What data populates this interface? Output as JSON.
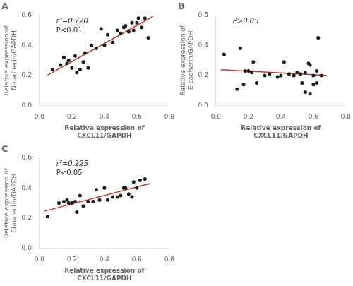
{
  "chart_data": [
    {
      "type": "scatter",
      "title": "A",
      "xlabel": "Relative expression of\nCXCL11/GAPDH",
      "ylabel": "Relative expression of\nN-cadherin/GAPDH",
      "annotations": [
        "r²=0.720",
        "P<0.01"
      ],
      "xlim": [
        0.0,
        0.8
      ],
      "ylim": [
        0.0,
        0.6
      ],
      "xticks": [
        {
          "value": 0.0,
          "label": "0.0"
        },
        0.2,
        0.4,
        0.6,
        0.8
      ],
      "yticks": [
        {
          "value": 0.0,
          "label": "0.0"
        },
        0.2,
        0.4,
        0.6
      ],
      "grid": false,
      "series": [
        {
          "type": "scatter",
          "color": "#1a1a1a",
          "x": [
            0.08,
            0.13,
            0.15,
            0.17,
            0.18,
            0.2,
            0.22,
            0.23,
            0.25,
            0.27,
            0.28,
            0.3,
            0.32,
            0.35,
            0.38,
            0.4,
            0.42,
            0.45,
            0.48,
            0.5,
            0.52,
            0.53,
            0.55,
            0.57,
            0.58,
            0.6,
            0.61,
            0.63,
            0.65,
            0.67
          ],
          "values": [
            0.24,
            0.27,
            0.32,
            0.28,
            0.3,
            0.25,
            0.33,
            0.22,
            0.24,
            0.29,
            0.35,
            0.25,
            0.4,
            0.38,
            0.51,
            0.4,
            0.47,
            0.42,
            0.5,
            0.48,
            0.52,
            0.53,
            0.49,
            0.55,
            0.5,
            0.55,
            0.58,
            0.52,
            0.58,
            0.45
          ]
        },
        {
          "type": "line",
          "color": "#c0392b",
          "x": [
            0.05,
            0.7
          ],
          "values": [
            0.20239,
            0.592155
          ]
        }
      ]
    },
    {
      "type": "scatter",
      "title": "B",
      "xlabel": "Relative expression of\nCXCL11/GAPDH",
      "ylabel": "Relative expression of\nE-cadherin/GAPDH",
      "annotations": [
        "P>0.05"
      ],
      "xlim": [
        0.0,
        0.8
      ],
      "ylim": [
        0.0,
        0.6
      ],
      "xticks": [
        {
          "value": 0.0,
          "label": "0.0"
        },
        0.2,
        0.4,
        0.6,
        0.8
      ],
      "yticks": [
        {
          "value": 0.0,
          "label": "0.0"
        },
        0.2,
        0.4,
        0.6
      ],
      "grid": false,
      "series": [
        {
          "type": "scatter",
          "color": "#1a1a1a",
          "x": [
            0.05,
            0.13,
            0.15,
            0.17,
            0.18,
            0.2,
            0.22,
            0.23,
            0.25,
            0.3,
            0.33,
            0.38,
            0.4,
            0.42,
            0.45,
            0.48,
            0.5,
            0.52,
            0.53,
            0.55,
            0.55,
            0.57,
            0.58,
            0.58,
            0.6,
            0.6,
            0.62,
            0.62,
            0.63,
            0.65
          ],
          "values": [
            0.34,
            0.11,
            0.38,
            0.14,
            0.23,
            0.23,
            0.22,
            0.29,
            0.15,
            0.2,
            0.21,
            0.19,
            0.2,
            0.29,
            0.21,
            0.2,
            0.22,
            0.21,
            0.15,
            0.22,
            0.09,
            0.28,
            0.27,
            0.08,
            0.2,
            0.14,
            0.23,
            0.15,
            0.45,
            0.2
          ]
        },
        {
          "type": "line",
          "color": "#c0392b",
          "x": [
            0.03,
            0.68
          ],
          "values": [
            0.238227,
            0.200669
          ]
        }
      ]
    },
    {
      "type": "scatter",
      "title": "C",
      "xlabel": "Relative expression of\nCXCL11/GAPDH",
      "ylabel": "Relative expression of\nfibronectin/GAPDH",
      "annotations": [
        "r²=0.225",
        "P<0.05"
      ],
      "xlim": [
        0.0,
        0.8
      ],
      "ylim": [
        0.0,
        0.6
      ],
      "xticks": [
        {
          "value": 0.0,
          "label": "0.0"
        },
        0.2,
        0.4,
        0.6,
        0.8
      ],
      "yticks": [
        {
          "value": 0.0,
          "label": "0.0"
        },
        0.2,
        0.4,
        0.6
      ],
      "grid": false,
      "series": [
        {
          "type": "scatter",
          "color": "#1a1a1a",
          "x": [
            0.05,
            0.12,
            0.15,
            0.17,
            0.18,
            0.2,
            0.22,
            0.23,
            0.25,
            0.27,
            0.3,
            0.33,
            0.35,
            0.37,
            0.4,
            0.42,
            0.45,
            0.48,
            0.5,
            0.52,
            0.53,
            0.55,
            0.57,
            0.58,
            0.6,
            0.62,
            0.65
          ],
          "values": [
            0.21,
            0.3,
            0.31,
            0.32,
            0.3,
            0.3,
            0.31,
            0.24,
            0.35,
            0.28,
            0.31,
            0.31,
            0.39,
            0.32,
            0.4,
            0.32,
            0.34,
            0.34,
            0.35,
            0.4,
            0.4,
            0.36,
            0.34,
            0.44,
            0.4,
            0.45,
            0.46
          ]
        },
        {
          "type": "line",
          "color": "#c0392b",
          "x": [
            0.03,
            0.68
          ],
          "values": [
            0.246068,
            0.429204
          ]
        }
      ]
    }
  ]
}
